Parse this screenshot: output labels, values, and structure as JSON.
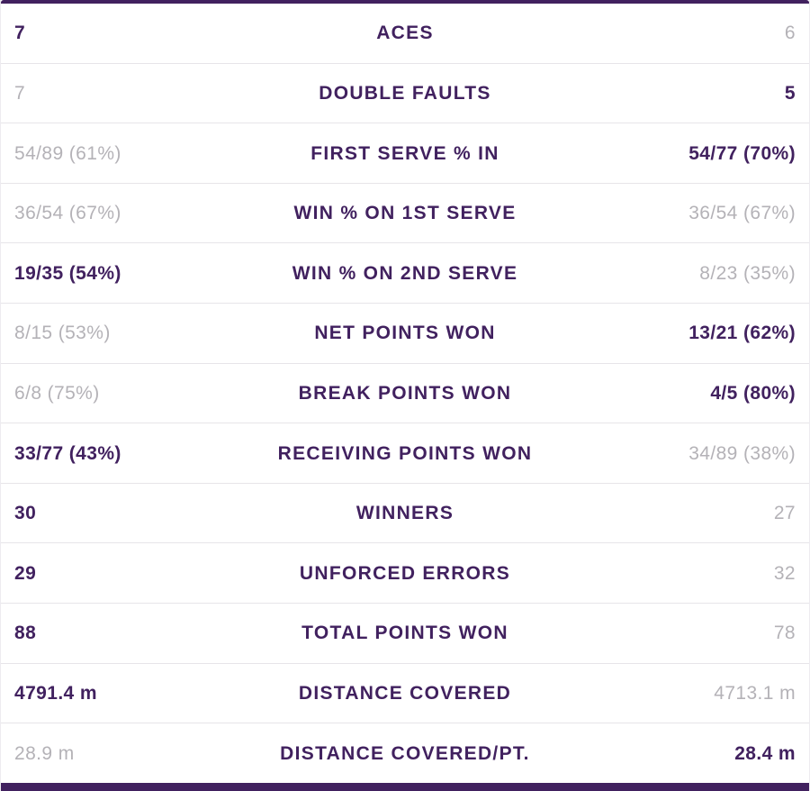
{
  "colors": {
    "accent_purple": "#41215f",
    "muted_gray": "#b4b2b7",
    "divider": "#e7e5e9",
    "background": "#ffffff"
  },
  "stats_table": {
    "rows": [
      {
        "label": "ACES",
        "left": "7",
        "right": "6",
        "left_win": true,
        "right_win": false
      },
      {
        "label": "DOUBLE FAULTS",
        "left": "7",
        "right": "5",
        "left_win": false,
        "right_win": true
      },
      {
        "label": "FIRST SERVE % IN",
        "left": "54/89 (61%)",
        "right": "54/77 (70%)",
        "left_win": false,
        "right_win": true
      },
      {
        "label": "WIN % ON 1ST SERVE",
        "left": "36/54 (67%)",
        "right": "36/54 (67%)",
        "left_win": false,
        "right_win": false
      },
      {
        "label": "WIN % ON 2ND SERVE",
        "left": "19/35 (54%)",
        "right": "8/23 (35%)",
        "left_win": true,
        "right_win": false
      },
      {
        "label": "NET POINTS WON",
        "left": "8/15 (53%)",
        "right": "13/21 (62%)",
        "left_win": false,
        "right_win": true
      },
      {
        "label": "BREAK POINTS WON",
        "left": "6/8 (75%)",
        "right": "4/5 (80%)",
        "left_win": false,
        "right_win": true
      },
      {
        "label": "RECEIVING POINTS WON",
        "left": "33/77 (43%)",
        "right": "34/89 (38%)",
        "left_win": true,
        "right_win": false
      },
      {
        "label": "WINNERS",
        "left": "30",
        "right": "27",
        "left_win": true,
        "right_win": false
      },
      {
        "label": "UNFORCED ERRORS",
        "left": "29",
        "right": "32",
        "left_win": true,
        "right_win": false
      },
      {
        "label": "TOTAL POINTS WON",
        "left": "88",
        "right": "78",
        "left_win": true,
        "right_win": false
      },
      {
        "label": "DISTANCE COVERED",
        "left": "4791.4 m",
        "right": "4713.1 m",
        "left_win": true,
        "right_win": false
      },
      {
        "label": "DISTANCE COVERED/PT.",
        "left": "28.9 m",
        "right": "28.4 m",
        "left_win": false,
        "right_win": true
      }
    ]
  }
}
